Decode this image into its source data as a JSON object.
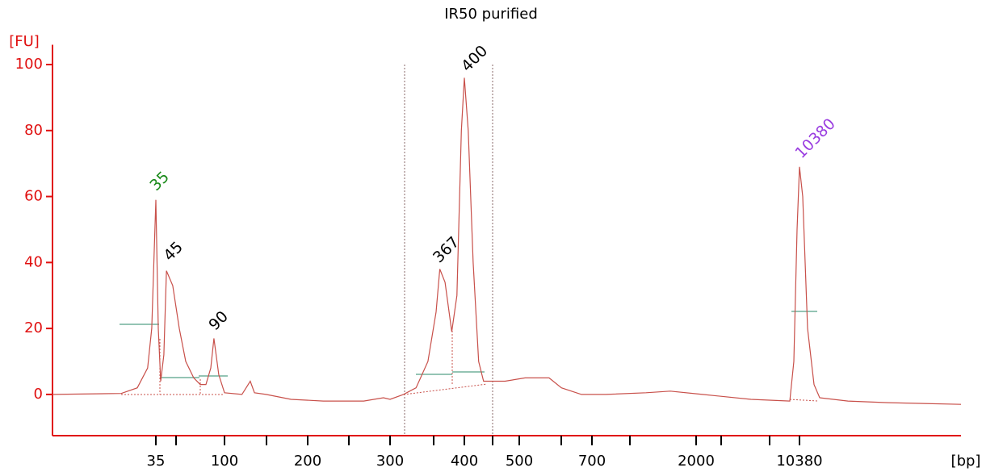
{
  "chart_data": {
    "type": "line",
    "title": "IR50 purified",
    "y_label": "[FU]",
    "x_label": "[bp]",
    "axis_color": "#e01010",
    "xlim": [
      15,
      17000
    ],
    "xticks": [
      35,
      100,
      200,
      300,
      400,
      500,
      700,
      2000,
      10380
    ],
    "ylim": [
      -12.5,
      106
    ],
    "yticks": [
      0,
      20,
      40,
      60,
      80,
      100
    ],
    "series": [
      {
        "color": "#c8504a",
        "x": [
          15,
          28.3,
          31.4,
          33.4,
          34.2,
          35,
          37.3,
          39.6,
          42.6,
          45,
          51,
          57.2,
          63.3,
          70.9,
          77,
          82.4,
          87,
          90,
          94.6,
          100,
          121,
          131,
          136,
          150,
          180,
          219,
          268,
          292,
          300,
          318,
          335,
          351,
          362,
          367,
          374,
          383,
          390,
          396,
          400,
          407,
          416,
          426,
          435,
          451,
          474,
          516,
          582,
          616,
          671,
          871,
          1375,
          1678,
          2524,
          6452,
          9594,
          9921,
          10183,
          10380,
          10512,
          10711,
          10976,
          11207,
          12366,
          14021,
          17000
        ],
        "values": [
          0,
          0.3,
          2,
          8,
          20,
          59,
          20,
          4,
          12,
          37.5,
          33,
          20,
          10,
          5,
          3,
          3,
          8,
          17,
          6,
          0.5,
          0,
          4,
          0.5,
          0,
          -1.5,
          -2,
          -2,
          -1,
          -1.5,
          0,
          2,
          10,
          25,
          38,
          34,
          19,
          30,
          80,
          96,
          80,
          40,
          10,
          4,
          4,
          4,
          5,
          5,
          2,
          0,
          0,
          0.5,
          1,
          0,
          -1.5,
          -2,
          10,
          50,
          69,
          60,
          20,
          3,
          -1,
          -2,
          -2.5,
          -3
        ]
      }
    ],
    "annotations": [
      {
        "text": "35",
        "color": "#1a8a1a"
      },
      {
        "text": "45",
        "color": "#000000"
      },
      {
        "text": "90",
        "color": "#000000"
      },
      {
        "text": "367",
        "color": "#000000"
      },
      {
        "text": "400",
        "color": "#000000"
      },
      {
        "text": "10380",
        "color": "#9a3de0"
      }
    ]
  }
}
